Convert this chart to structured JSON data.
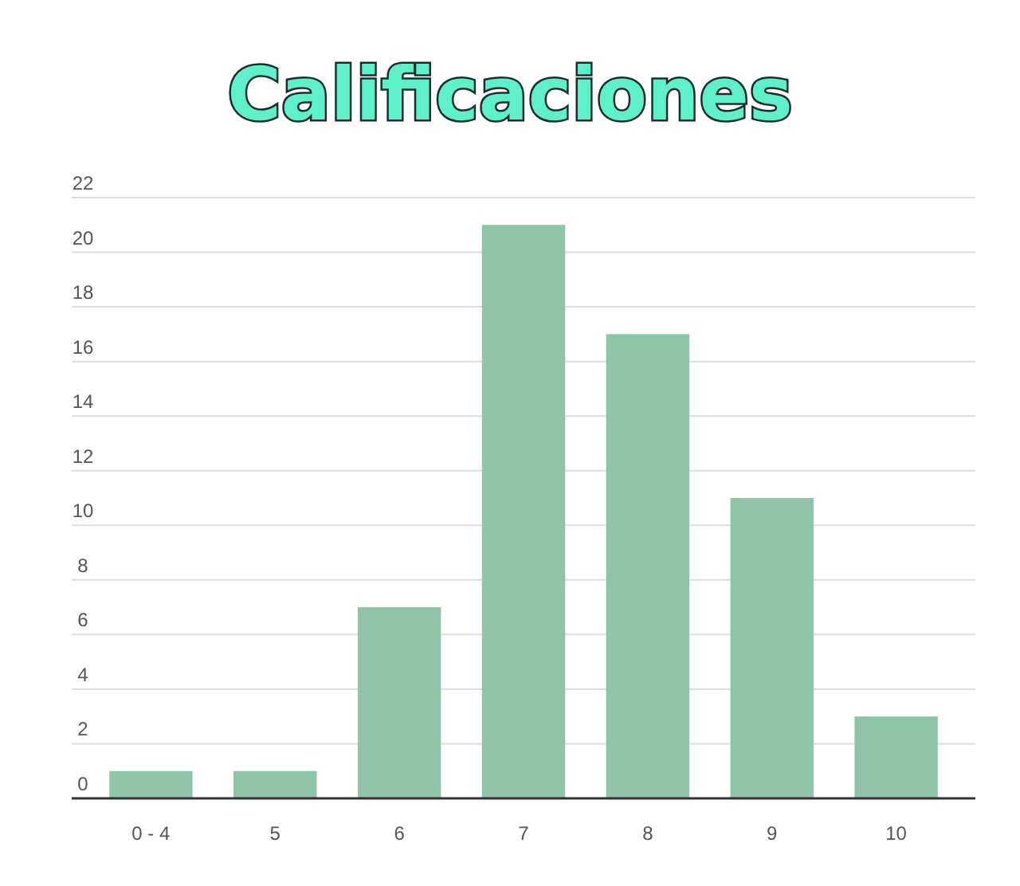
{
  "chart_data": {
    "type": "bar",
    "title": "Calificaciones",
    "categories": [
      "0 - 4",
      "5",
      "6",
      "7",
      "8",
      "9",
      "10"
    ],
    "values": [
      1,
      1,
      7,
      21,
      17,
      11,
      3
    ],
    "color": "#8fc4a8",
    "ylim": [
      0,
      22
    ],
    "yticks": [
      0,
      2,
      4,
      6,
      8,
      10,
      12,
      14,
      16,
      18,
      20,
      22
    ],
    "grid": "y"
  }
}
